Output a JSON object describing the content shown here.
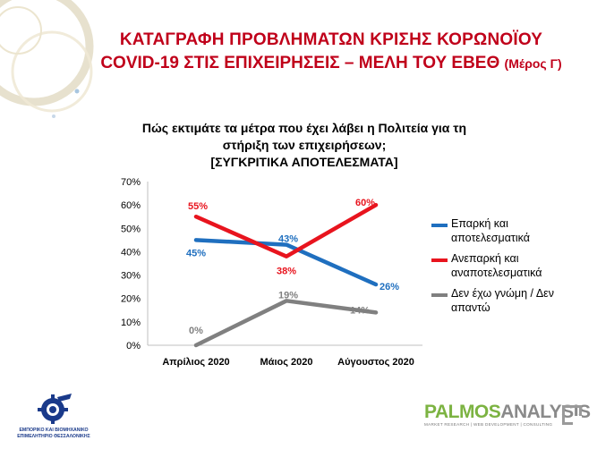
{
  "slide": {
    "title_line1": "ΚΑΤΑΓΡΑΦΗ ΠΡΟΒΛΗΜΑΤΩΝ ΚΡΙΣΗΣ ΚΟΡΩΝΟΪΟΥ",
    "title_line2": "COVID-19 ΣΤΙΣ ΕΠΙΧΕΙΡΗΣΕΙΣ – ΜΕΛΗ ΤΟΥ ΕΒΕΘ",
    "title_part": "(Μέρος Γ)",
    "accent_color": "#c0001a"
  },
  "chart_data": {
    "type": "line",
    "title_line1": "Πώς εκτιμάτε τα μέτρα που έχει λάβει η Πολιτεία για τη",
    "title_line2": "στήριξη των επιχειρήσεων;",
    "title_line3": "[ΣΥΓΚΡΙΤΙΚΑ ΑΠΟΤΕΛΕΣΜΑΤΑ]",
    "categories": [
      "Απρίλιος 2020",
      "Μάιος 2020",
      "Αύγουστος 2020"
    ],
    "y_ticks": [
      "0%",
      "10%",
      "20%",
      "30%",
      "40%",
      "50%",
      "60%",
      "70%"
    ],
    "ylim": [
      0,
      70
    ],
    "legend_position": "right",
    "series": [
      {
        "name_line1": "Επαρκή και",
        "name_line2": "αποτελεσματικά",
        "color": "#1f6fbf",
        "values": [
          45,
          43,
          26
        ],
        "labels": [
          "45%",
          "43%",
          "26%"
        ]
      },
      {
        "name_line1": "Ανεπαρκή και",
        "name_line2": "αναποτελεσματικά",
        "color": "#e8141e",
        "values": [
          55,
          38,
          60
        ],
        "labels": [
          "55%",
          "38%",
          "60%"
        ]
      },
      {
        "name_line1": "Δεν έχω γνώμη / Δεν",
        "name_line2": "απαντώ",
        "color": "#808080",
        "values": [
          0,
          19,
          14
        ],
        "labels": [
          "0%",
          "19%",
          "14%"
        ]
      }
    ]
  },
  "logos": {
    "left_caption_line1": "ΕΜΠΟΡΙΚΟ ΚΑΙ ΒΙΟΜΗΧΑΝΙΚΟ",
    "left_caption_line2": "ΕΠΙΜΕΛΗΤΗΡΙΟ ΘΕΣΣΑΛΟΝΙΚΗΣ",
    "right_brand_part1": "PALMOS",
    "right_brand_part2": "ANALYSIS",
    "right_tagline": "MARKET RESEARCH | WEB DEVELOPMENT | CONSULTING"
  }
}
